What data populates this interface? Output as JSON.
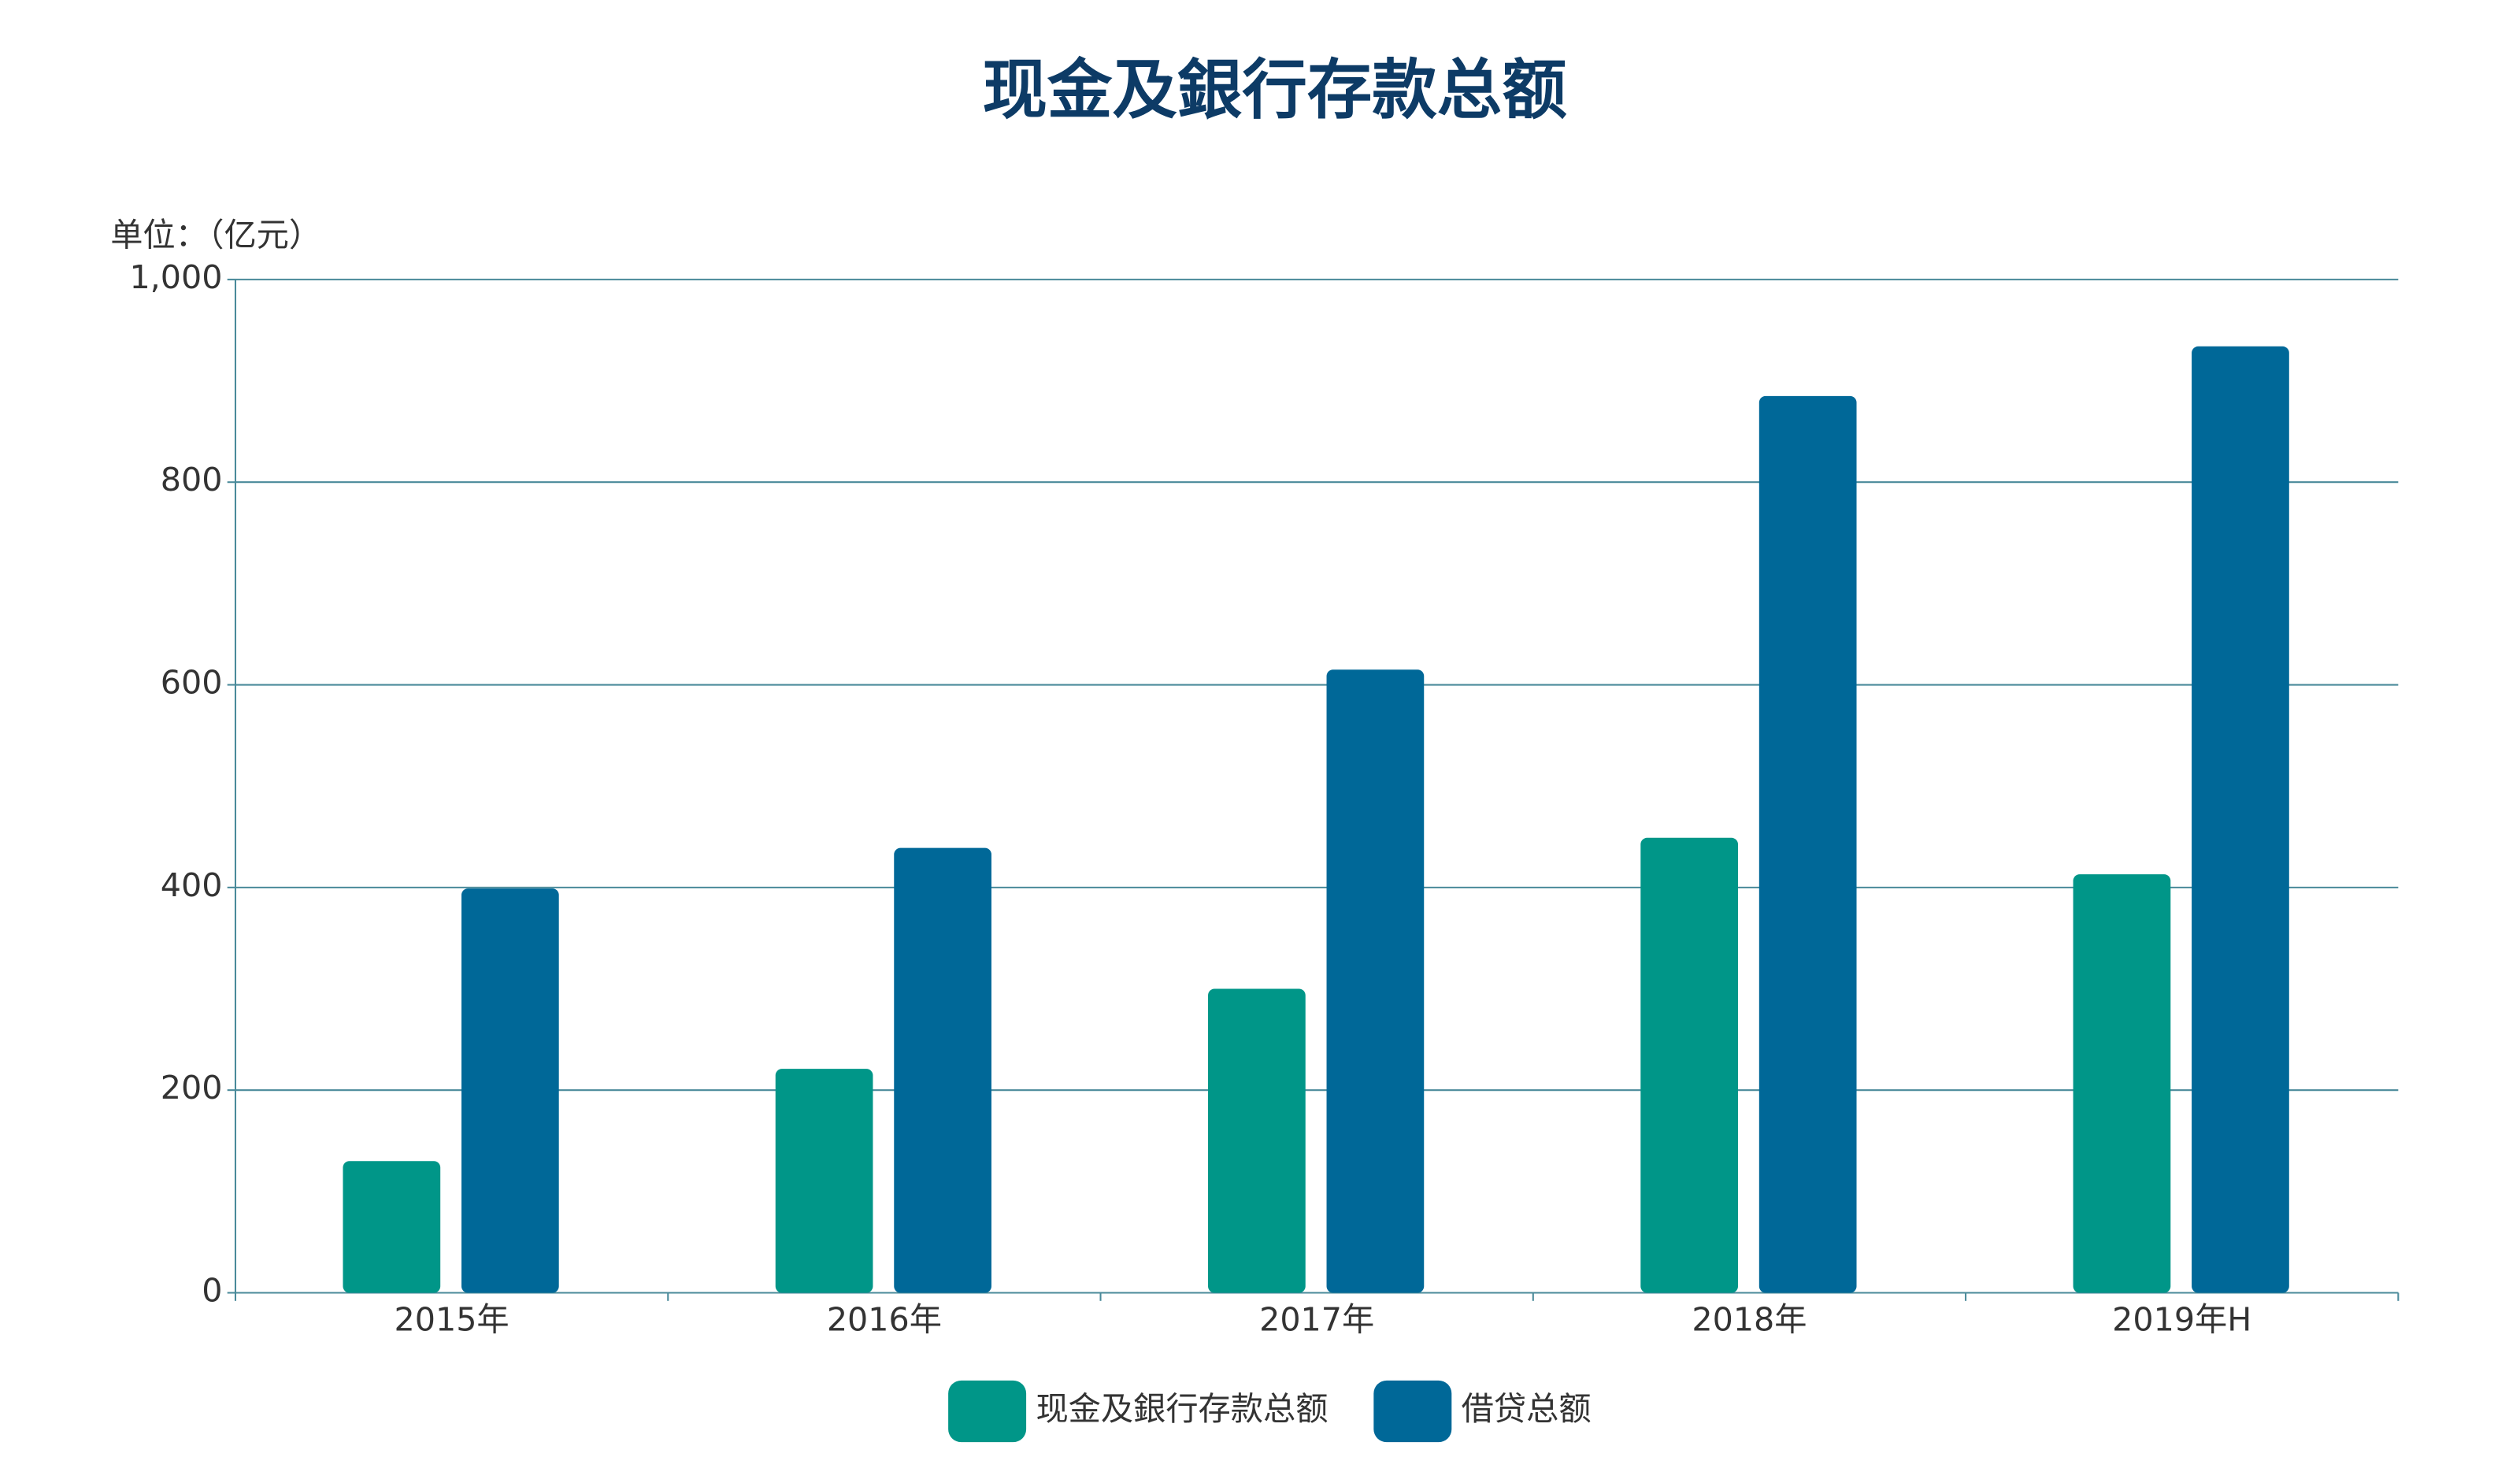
{
  "chart_data": {
    "type": "bar",
    "title": "现金及銀行存款总额",
    "y_axis_label": "单位：（亿元）",
    "categories": [
      "2015年",
      "2016年",
      "2017年",
      "2018年",
      "2019年H"
    ],
    "series": [
      {
        "name": "现金及銀行存款总额",
        "color": "#009688",
        "values": [
          130,
          221,
          300,
          449,
          413
        ]
      },
      {
        "name": "借贷总额",
        "color": "#006898",
        "values": [
          399,
          439,
          615,
          885,
          934
        ]
      }
    ],
    "ylim": [
      0,
      1000
    ],
    "yticks": [
      0,
      200,
      400,
      600,
      800,
      {
        "value": 1000,
        "label": "1,000"
      }
    ],
    "grid": true,
    "legend": "bottom"
  }
}
